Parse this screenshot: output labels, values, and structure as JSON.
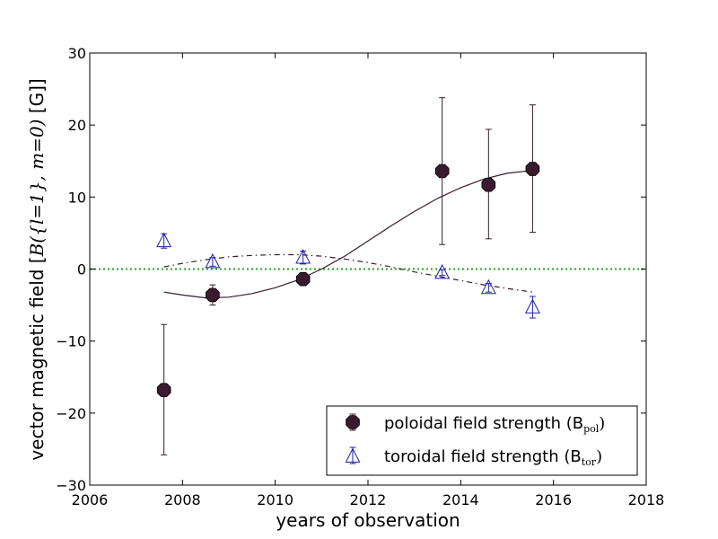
{
  "chart_data": {
    "type": "scatter",
    "xlabel": "years of observation",
    "ylabel": "vector magnetic field [",
    "ylabel_math": "B({l=1}, m=0)",
    "ylabel_unit": " [G]]",
    "xlim": [
      2006,
      2018
    ],
    "ylim": [
      -30,
      30
    ],
    "xticks": [
      "2006",
      "2008",
      "2010",
      "2012",
      "2014",
      "2016",
      "2018"
    ],
    "yticks": [
      "30",
      "20",
      "10",
      "0",
      "−10",
      "−20",
      "−30"
    ],
    "grid": false,
    "legend_position": "lower-right",
    "reference_line": {
      "y": 0,
      "style": "dotted",
      "color": "#2ca02c"
    },
    "series": [
      {
        "name": "poloidal field strength (B",
        "name_sub": "pol",
        "name_close": ")",
        "marker": "octagon",
        "color": "#3a1a2e",
        "x": [
          2007.6,
          2008.65,
          2010.6,
          2013.6,
          2014.6,
          2015.55
        ],
        "y": [
          -16.8,
          -3.6,
          -1.4,
          13.6,
          11.7,
          13.9
        ],
        "yerr_high": [
          -7.7,
          -2.2,
          -0.6,
          23.8,
          19.4,
          22.8
        ],
        "yerr_low": [
          -25.8,
          -5.0,
          -2.2,
          3.4,
          4.2,
          5.1
        ]
      },
      {
        "name": "toroidal field strength (B",
        "name_sub": "tor",
        "name_close": ")",
        "marker": "triangle",
        "color": "#1f1fb4",
        "x": [
          2007.6,
          2008.65,
          2010.6,
          2013.6,
          2014.6,
          2015.55
        ],
        "y": [
          3.9,
          1.0,
          1.6,
          -0.5,
          -2.6,
          -5.3
        ],
        "yerr_high": [
          4.9,
          1.6,
          2.5,
          -0.1,
          -2.0,
          -3.8
        ],
        "yerr_low": [
          2.9,
          0.4,
          0.7,
          -0.9,
          -3.2,
          -6.8
        ]
      }
    ],
    "fits": [
      {
        "for": "poloidal",
        "style": "solid",
        "color": "#3a1a2e",
        "x": [
          2007.6,
          2008.0,
          2008.5,
          2009.0,
          2009.5,
          2010.0,
          2010.5,
          2011.0,
          2011.5,
          2012.0,
          2012.5,
          2013.0,
          2013.5,
          2014.0,
          2014.5,
          2015.0,
          2015.55
        ],
        "y": [
          -3.2,
          -3.6,
          -4.0,
          -3.9,
          -3.4,
          -2.6,
          -1.5,
          0.0,
          1.8,
          3.9,
          6.0,
          8.0,
          9.8,
          11.3,
          12.5,
          13.3,
          13.7
        ]
      },
      {
        "for": "toroidal",
        "style": "dashdot",
        "color": "#3a1a2e",
        "x": [
          2007.6,
          2008.0,
          2008.5,
          2009.0,
          2009.5,
          2010.0,
          2010.5,
          2011.0,
          2011.5,
          2012.0,
          2012.5,
          2013.0,
          2013.5,
          2014.0,
          2014.5,
          2015.0,
          2015.55
        ],
        "y": [
          0.3,
          0.8,
          1.3,
          1.7,
          1.9,
          2.0,
          2.0,
          1.8,
          1.4,
          0.9,
          0.3,
          -0.4,
          -1.0,
          -1.6,
          -2.2,
          -2.7,
          -3.2
        ]
      }
    ]
  }
}
